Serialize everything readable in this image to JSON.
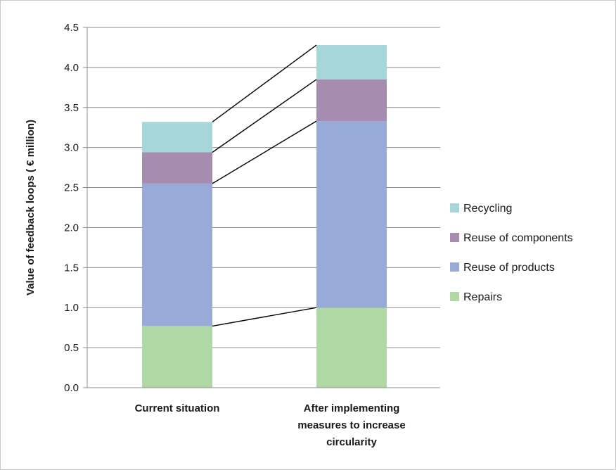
{
  "chart_data": {
    "type": "bar",
    "stacked": true,
    "title": "",
    "xlabel": "",
    "ylabel": "Value of feedback loops ( € million)",
    "ylim": [
      0,
      4.5
    ],
    "yticks": [
      "0.0",
      "0.5",
      "1.0",
      "1.5",
      "2.0",
      "2.5",
      "3.0",
      "3.5",
      "4.0",
      "4.5"
    ],
    "grid": true,
    "legend_position": "right",
    "categories": [
      "Current situation",
      [
        "After implementing",
        "measures to increase",
        "circularity"
      ]
    ],
    "series": [
      {
        "name": "Repairs",
        "color": "#b0d8a4",
        "values": [
          0.77,
          1.0
        ]
      },
      {
        "name": "Reuse of products",
        "color": "#97aad8",
        "values": [
          1.78,
          2.33
        ]
      },
      {
        "name": "Reuse of components",
        "color": "#a68daf",
        "values": [
          0.39,
          0.52
        ]
      },
      {
        "name": "Recycling",
        "color": "#a7d6da",
        "values": [
          0.38,
          0.43
        ]
      }
    ],
    "connector_lines": true
  }
}
